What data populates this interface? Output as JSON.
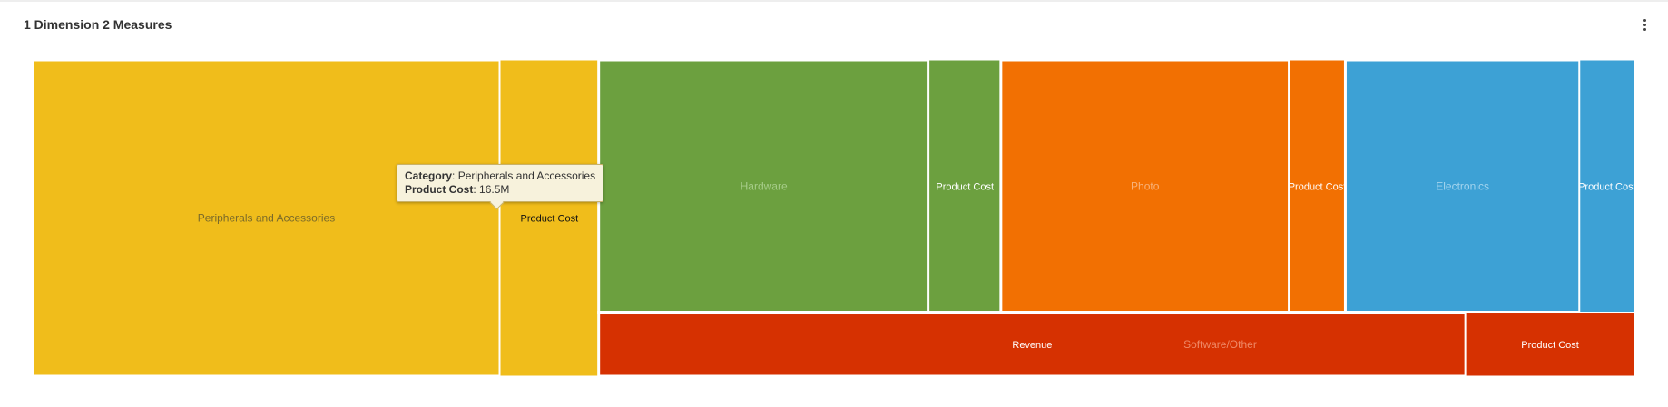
{
  "header": {
    "title": "1 Dimension 2 Measures",
    "menu_icon": "more-vert-icon"
  },
  "tooltip": {
    "category_label": "Category",
    "category_value": "Peripherals and Accessories",
    "measure_label": "Product Cost",
    "measure_value": "16.5M"
  },
  "chart_data": {
    "type": "treemap",
    "title": "1 Dimension 2 Measures",
    "measures": [
      "Revenue",
      "Product Cost"
    ],
    "categories": [
      {
        "name": "Peripherals and Accessories",
        "color": "#F0BD1B",
        "cells": [
          {
            "measure": "Revenue",
            "label": "",
            "value": 78.2
          },
          {
            "measure": "Product Cost",
            "label": "Product Cost",
            "value": 16.5
          }
        ]
      },
      {
        "name": "Hardware",
        "color": "#6CA03F",
        "cells": [
          {
            "measure": "Revenue",
            "label": "",
            "value": 44.1
          },
          {
            "measure": "Product Cost",
            "label": "Product Cost",
            "value": 9.6
          }
        ]
      },
      {
        "name": "Photo",
        "color": "#F27002",
        "cells": [
          {
            "measure": "Revenue",
            "label": "",
            "value": 38.5
          },
          {
            "measure": "Product Cost",
            "label": "Product Cost",
            "value": 7.5
          }
        ]
      },
      {
        "name": "Electronics",
        "color": "#3DA1D5",
        "cells": [
          {
            "measure": "Revenue",
            "label": "",
            "value": 31.3
          },
          {
            "measure": "Product Cost",
            "label": "Product Cost",
            "value": 7.3
          }
        ]
      },
      {
        "name": "Software/Other",
        "color": "#D63101",
        "cells": [
          {
            "measure": "Revenue",
            "label": "Revenue",
            "value": 29.3
          },
          {
            "measure": "Product Cost",
            "label": "Product Cost",
            "value": 5.7
          }
        ]
      }
    ]
  }
}
